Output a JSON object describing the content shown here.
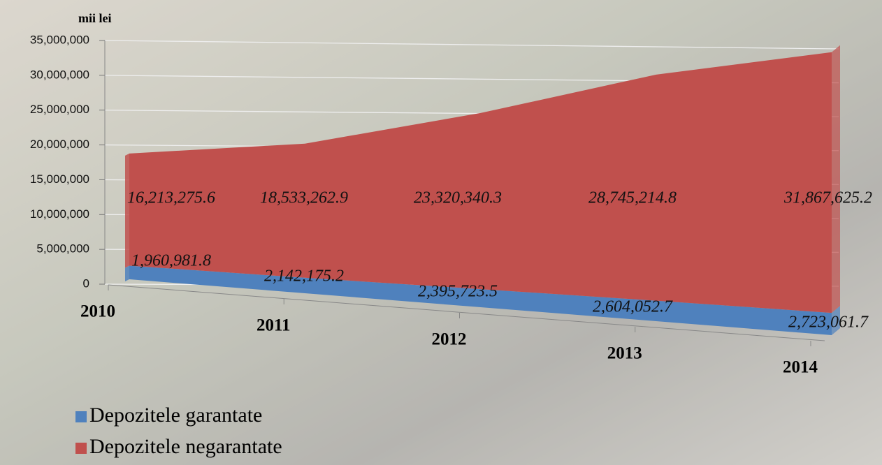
{
  "chart_data": {
    "type": "area",
    "stacked": true,
    "y_label": "mii lei",
    "categories": [
      "2010",
      "2011",
      "2012",
      "2013",
      "2014"
    ],
    "series": [
      {
        "name": "Depozitele garantate",
        "color": "#4f81bd",
        "values": [
          1960981.8,
          2142175.2,
          2395723.5,
          2604052.7,
          2723061.7
        ]
      },
      {
        "name": "Depozitele negarantate",
        "color": "#c0504d",
        "values": [
          16213275.6,
          18533262.9,
          23320340.3,
          28745214.8,
          31867625.2
        ]
      }
    ],
    "ylim": [
      0,
      35000000
    ],
    "yticks": [
      0,
      {
        "value": 5000000,
        "label": "5,000,000"
      },
      {
        "value": 10000000,
        "label": "10,000,000"
      },
      {
        "value": 15000000,
        "label": "15,000,000"
      },
      {
        "value": 20000000,
        "label": "20,000,000"
      },
      {
        "value": 25000000,
        "label": "25,000,000"
      },
      {
        "value": 30000000,
        "label": "30,000,000"
      },
      {
        "value": 35000000,
        "label": "35,000,000"
      }
    ],
    "value_labels": [
      [
        "1,960,981.8",
        "2,142,175.2",
        "2,395,723.5",
        "2,604,052.7",
        "2,723,061.7"
      ],
      [
        "16,213,275.6",
        "18,533,262.9",
        "23,320,340.3",
        "28,745,214.8",
        "31,867,625.2"
      ]
    ],
    "grid": true
  }
}
